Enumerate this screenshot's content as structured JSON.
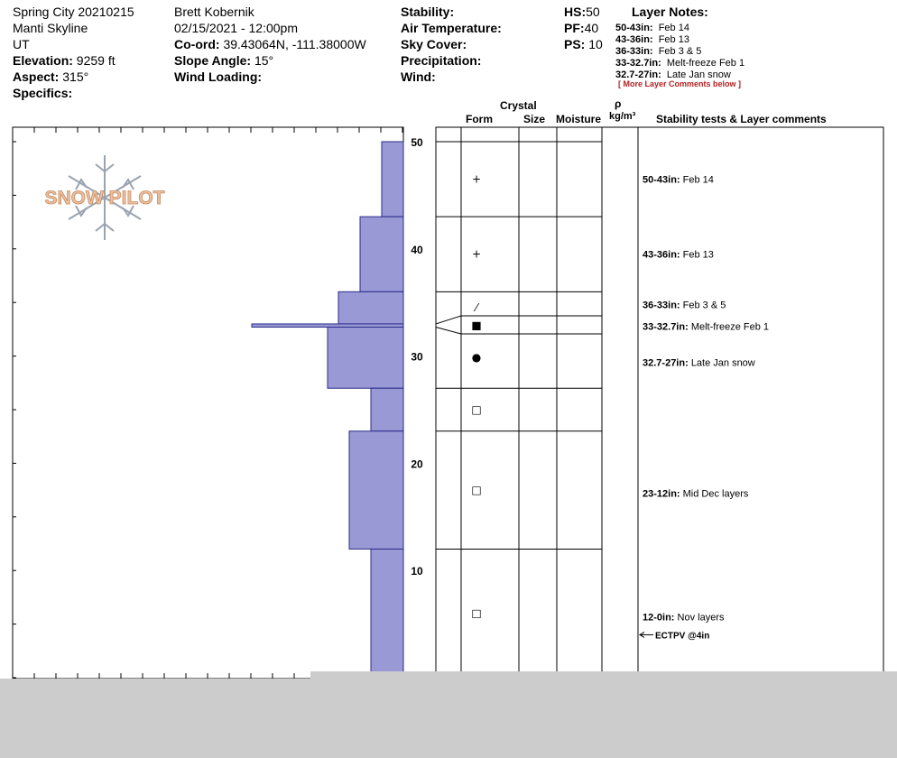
{
  "header": {
    "col1": {
      "location": "Spring City 20210215",
      "range": "Manti Skyline",
      "state": "UT",
      "elevation_label": "Elevation:",
      "elevation_value": "9259 ft",
      "aspect_label": "Aspect:",
      "aspect_value": "315°",
      "specifics_label": "Specifics:"
    },
    "col2": {
      "observer": "Brett Kobernik",
      "datetime": "02/15/2021 - 12:00pm",
      "coord_label": "Co-ord:",
      "coord_value": "39.43064N, -111.38000W",
      "slope_label": "Slope Angle:",
      "slope_value": "15°",
      "wind_loading_label": "Wind Loading:"
    },
    "col3": {
      "stability_label": "Stability:",
      "air_temp_label": "Air Temperature:",
      "sky_cover_label": "Sky Cover:",
      "precip_label": "Precipitation:",
      "wind_label": "Wind:"
    },
    "col4": {
      "hs_label": "HS:",
      "hs_value": "50",
      "pf_label": "PF:",
      "pf_value": "40",
      "ps_label": "PS:",
      "ps_value": "10"
    },
    "layer_notes": {
      "title": "Layer Notes:",
      "items": [
        {
          "range": "50-43in:",
          "text": "Feb 14"
        },
        {
          "range": "43-36in:",
          "text": "Feb 13"
        },
        {
          "range": "36-33in:",
          "text": "Feb 3 & 5"
        },
        {
          "range": "33-32.7in:",
          "text": "Melt-freeze Feb 1"
        },
        {
          "range": "32.7-27in:",
          "text": "Late Jan snow"
        }
      ],
      "more": "[ More Layer Comments below ]"
    }
  },
  "logo": {
    "text": "SNOW PILOT"
  },
  "columns": {
    "crystal": "Crystal",
    "form": "Form",
    "size": "Size",
    "moisture": "Moisture",
    "rho": "ρ",
    "density_unit": "kg/m³",
    "stability": "Stability tests & Layer comments"
  },
  "colors": {
    "hardness_fill": "#9999d6",
    "hardness_stroke": "#2b2b8a",
    "overlay": "#cccccc"
  },
  "chart_data": {
    "type": "bar",
    "orientation": "horizontal",
    "ylim": [
      0,
      50
    ],
    "y_ticks": [
      10,
      20,
      30,
      40,
      50
    ],
    "layers": [
      {
        "top": 50,
        "bottom": 43,
        "hardness": 1
      },
      {
        "top": 43,
        "bottom": 36,
        "hardness": 2
      },
      {
        "top": 36,
        "bottom": 33,
        "hardness": 3
      },
      {
        "top": 33,
        "bottom": 32.7,
        "hardness": 7
      },
      {
        "top": 32.7,
        "bottom": 27,
        "hardness": 3.5
      },
      {
        "top": 27,
        "bottom": 23,
        "hardness": 1.5
      },
      {
        "top": 23,
        "bottom": 12,
        "hardness": 2.5
      },
      {
        "top": 12,
        "bottom": 0,
        "hardness": 1.5
      }
    ],
    "grain_symbols": [
      {
        "height": 46.5,
        "symbol": "+"
      },
      {
        "height": 39.5,
        "symbol": "+"
      },
      {
        "height": 34.5,
        "symbol": "⁄"
      },
      {
        "height": 32.85,
        "symbol": "■"
      },
      {
        "height": 29.9,
        "symbol": "●"
      },
      {
        "height": 25,
        "symbol": "□"
      },
      {
        "height": 17.5,
        "symbol": "□"
      },
      {
        "height": 6,
        "symbol": "□"
      }
    ],
    "layer_comments": [
      {
        "height": 46.5,
        "range": "50-43in:",
        "text": "Feb 14"
      },
      {
        "height": 39.5,
        "range": "43-36in:",
        "text": "Feb 13"
      },
      {
        "height": 34.8,
        "range": "36-33in:",
        "text": "Feb 3 & 5"
      },
      {
        "height": 32.8,
        "range": "33-32.7in:",
        "text": "Melt-freeze Feb 1"
      },
      {
        "height": 29.4,
        "range": "32.7-27in:",
        "text": "Late Jan snow"
      },
      {
        "height": 17.2,
        "range": "23-12in:",
        "text": "Mid Dec layers"
      },
      {
        "height": 5.7,
        "range": "12-0in:",
        "text": "Nov layers"
      }
    ],
    "stability_tests": [
      {
        "height": 4,
        "text": "ECTPV @4in"
      }
    ]
  }
}
